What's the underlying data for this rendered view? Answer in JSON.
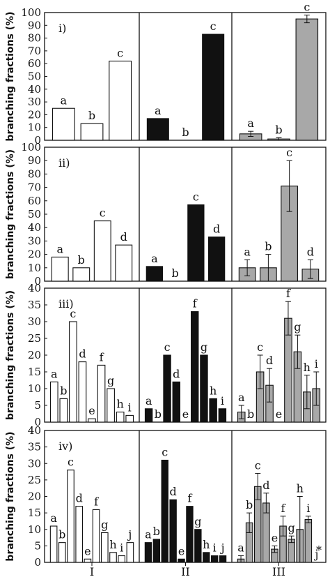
{
  "figure": {
    "ylabel": "branching fractions (%)",
    "column_labels": [
      "I",
      "II",
      "III"
    ],
    "column_colors": [
      "#ffffff",
      "#111111",
      "#a8a8a8"
    ]
  },
  "chart_data": [
    {
      "type": "bar",
      "panel_label": "i)",
      "ylabel": "branching fractions (%)",
      "ylim": [
        0,
        100
      ],
      "yticks": [
        0,
        10,
        20,
        30,
        40,
        50,
        60,
        70,
        80,
        90,
        100
      ],
      "groups": [
        "I",
        "II",
        "III"
      ],
      "categories": [
        "a",
        "b",
        "c"
      ],
      "series": [
        {
          "group": "I",
          "values": [
            25,
            13,
            62
          ]
        },
        {
          "group": "II",
          "values": [
            17,
            0,
            83
          ]
        },
        {
          "group": "III",
          "values": [
            5,
            1,
            95
          ],
          "errors": [
            2,
            1,
            3
          ]
        }
      ]
    },
    {
      "type": "bar",
      "panel_label": "ii)",
      "ylabel": "branching fractions (%)",
      "ylim": [
        0,
        100
      ],
      "yticks": [
        0,
        10,
        20,
        30,
        40,
        50,
        60,
        70,
        80,
        90,
        100
      ],
      "groups": [
        "I",
        "II",
        "III"
      ],
      "categories": [
        "a",
        "b",
        "c",
        "d"
      ],
      "series": [
        {
          "group": "I",
          "values": [
            18,
            10,
            45,
            27
          ]
        },
        {
          "group": "II",
          "values": [
            11,
            0,
            57,
            33
          ]
        },
        {
          "group": "III",
          "values": [
            10,
            10,
            71,
            9
          ],
          "errors": [
            6,
            10,
            19,
            7
          ]
        }
      ]
    },
    {
      "type": "bar",
      "panel_label": "iii)",
      "ylabel": "branching fractions (%)",
      "ylim": [
        0,
        40
      ],
      "yticks": [
        0,
        5,
        10,
        15,
        20,
        25,
        30,
        35,
        40
      ],
      "groups": [
        "I",
        "II",
        "III"
      ],
      "categories": [
        "a",
        "b",
        "c",
        "d",
        "e",
        "f",
        "g",
        "h",
        "i"
      ],
      "series": [
        {
          "group": "I",
          "values": [
            12,
            7,
            30,
            18,
            1,
            17,
            10,
            3,
            2
          ]
        },
        {
          "group": "II",
          "values": [
            4,
            0,
            20,
            12,
            0,
            33,
            20,
            7,
            4
          ]
        },
        {
          "group": "III",
          "values": [
            3,
            0,
            15,
            11,
            0,
            31,
            21,
            9,
            10
          ],
          "errors": [
            2,
            0,
            5,
            5,
            0,
            5,
            5,
            5,
            5
          ]
        }
      ]
    },
    {
      "type": "bar",
      "panel_label": "iv)",
      "ylabel": "branching fractions (%)",
      "ylim": [
        0,
        40
      ],
      "yticks": [
        0,
        5,
        10,
        15,
        20,
        25,
        30,
        35,
        40
      ],
      "groups": [
        "I",
        "II",
        "III"
      ],
      "categories": [
        "a",
        "b",
        "c",
        "d",
        "e",
        "f",
        "g",
        "h",
        "i",
        "j"
      ],
      "series": [
        {
          "group": "I",
          "values": [
            11,
            6,
            28,
            17,
            1,
            16,
            9,
            3,
            2,
            6
          ]
        },
        {
          "group": "II",
          "values": [
            6,
            7,
            31,
            19,
            1,
            17,
            10,
            3,
            2,
            2
          ]
        },
        {
          "group": "III",
          "values": [
            1,
            12,
            23,
            18,
            4,
            11,
            7,
            10,
            13,
            0
          ],
          "errors": [
            1,
            3,
            4,
            3,
            1,
            3,
            1,
            10,
            1,
            0
          ]
        }
      ],
      "annotations": [
        "*"
      ]
    }
  ]
}
